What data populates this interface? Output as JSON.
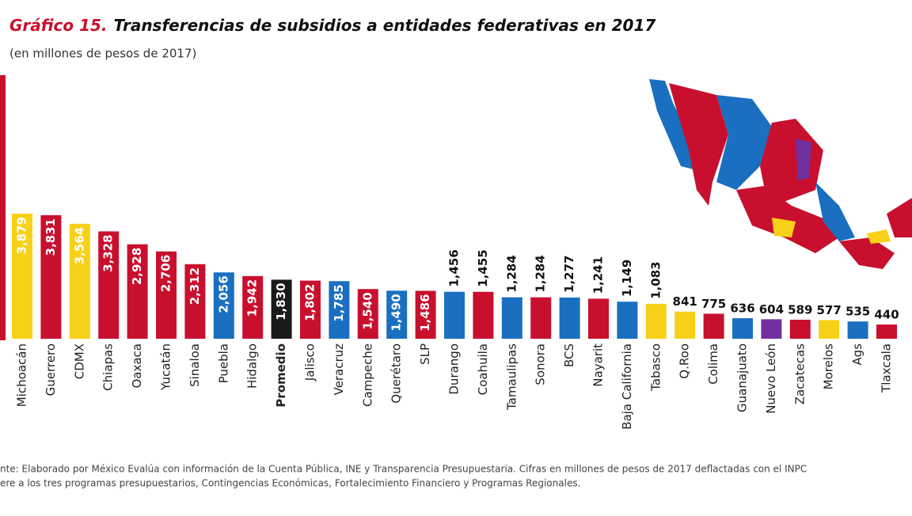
{
  "chart_data": {
    "type": "bar",
    "title_prefix": "Gráfico 15.",
    "title": "Transferencias de subsidios a entidades federativas en 2017",
    "subtitle": "(en millones de pesos de 2017)",
    "categories": [
      "Michoacán",
      "Guerrero",
      "CDMX",
      "Chiapas",
      "Oaxaca",
      "Yucatán",
      "Sinaloa",
      "Puebla",
      "Hidalgo",
      "Promedio",
      "Jalisco",
      "Veracruz",
      "Campeche",
      "Querétaro",
      "SLP",
      "Durango",
      "Coahuila",
      "Tamaulipas",
      "Sonora",
      "BCS",
      "Nayarit",
      "Baja California",
      "Tabasco",
      "Q.Roo",
      "Colima",
      "Guanajuato",
      "Nuevo León",
      "Zacatecas",
      "Morelos",
      "Ags",
      "Tlaxcala"
    ],
    "values": [
      3879,
      3831,
      3564,
      3328,
      2928,
      2706,
      2312,
      2056,
      1942,
      1830,
      1802,
      1785,
      1540,
      1490,
      1486,
      1456,
      1455,
      1284,
      1284,
      1277,
      1241,
      1149,
      1083,
      841,
      775,
      636,
      604,
      589,
      577,
      535,
      440
    ],
    "value_labels": [
      "3,879",
      "3,831",
      "3,564",
      "3,328",
      "2,928",
      "2,706",
      "2,312",
      "2,056",
      "1,942",
      "1,830",
      "1,802",
      "1,785",
      "1,540",
      "1,490",
      "1,486",
      "1,456",
      "1,455",
      "1,284",
      "1,284",
      "1,277",
      "1,241",
      "1,149",
      "1,083",
      "841",
      "775",
      "636",
      "604",
      "589",
      "577",
      "535",
      "440"
    ],
    "colors": [
      "#f7d117",
      "#c8102e",
      "#f7d117",
      "#c8102e",
      "#c8102e",
      "#c8102e",
      "#c8102e",
      "#1a6fc0",
      "#c8102e",
      "#1a1a1a",
      "#c8102e",
      "#1a6fc0",
      "#c8102e",
      "#1a6fc0",
      "#c8102e",
      "#1a6fc0",
      "#c8102e",
      "#1a6fc0",
      "#c8102e",
      "#1a6fc0",
      "#c8102e",
      "#1a6fc0",
      "#f7d117",
      "#f7d117",
      "#c8102e",
      "#1a6fc0",
      "#7030a0",
      "#c8102e",
      "#f7d117",
      "#1a6fc0",
      "#c8102e"
    ],
    "ylim": [
      0,
      8000
    ],
    "footnote": [
      "nte: Elaborado por México Evalúa con información de la Cuenta Pública, INE y Transparencia Presupuestaria. Cifras en millones de pesos de 2017 deflactadas con el INPC",
      "ere a los tres programas presupuestarios, Contingencias Económicas, Fortalecimiento Financiero y Programas Regionales."
    ]
  }
}
